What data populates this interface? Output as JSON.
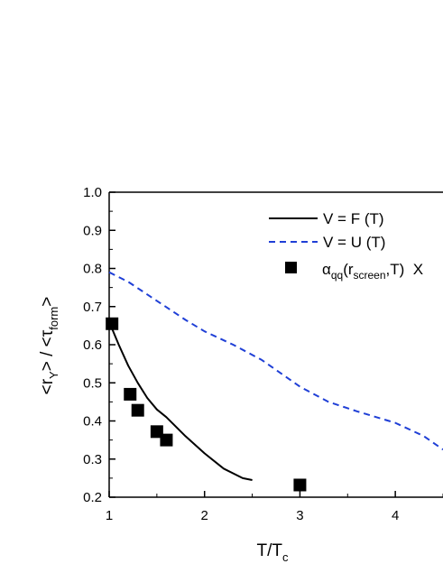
{
  "chart_data": {
    "type": "line",
    "title": "",
    "xlabel": {
      "main": "T/T",
      "sub": "c"
    },
    "ylabel": {
      "part1": "<r",
      "sub1": "Y",
      "part2": "> / <τ",
      "sub2": "form",
      "part3": ">"
    },
    "xlim": [
      1,
      4.5
    ],
    "ylim": [
      0.2,
      1.0
    ],
    "x_ticks": [
      1,
      2,
      3,
      4
    ],
    "x_tick_labels": [
      "1",
      "2",
      "3",
      "4"
    ],
    "y_ticks": [
      0.2,
      0.3,
      0.4,
      0.5,
      0.6,
      0.7,
      0.8,
      0.9,
      1.0
    ],
    "y_tick_labels": [
      "0.2",
      "0.3",
      "0.4",
      "0.5",
      "0.6",
      "0.7",
      "0.8",
      "0.9",
      "1.0"
    ],
    "grid": false,
    "legend_position": "top-right",
    "series": [
      {
        "name": "V = F (T)",
        "style": "solid",
        "color": "#000000",
        "x": [
          1.0,
          1.1,
          1.2,
          1.3,
          1.4,
          1.5,
          1.6,
          1.8,
          2.0,
          2.2,
          2.4,
          2.5
        ],
        "y": [
          0.66,
          0.6,
          0.545,
          0.5,
          0.46,
          0.43,
          0.41,
          0.36,
          0.315,
          0.275,
          0.25,
          0.245
        ]
      },
      {
        "name": "V = U (T)",
        "style": "dashed",
        "color": "#1f3fd6",
        "x": [
          1.0,
          1.2,
          1.5,
          1.8,
          2.0,
          2.3,
          2.6,
          3.0,
          3.3,
          3.6,
          4.0,
          4.3,
          4.5
        ],
        "y": [
          0.79,
          0.765,
          0.715,
          0.665,
          0.635,
          0.6,
          0.56,
          0.49,
          0.45,
          0.425,
          0.395,
          0.36,
          0.325
        ]
      },
      {
        "name": "α",
        "name_sub1": "qq",
        "name_part2": "(r",
        "name_sub2": "screen",
        "name_part3": ",T)  X",
        "style": "markers",
        "marker": "square",
        "color": "#000000",
        "x": [
          1.03,
          1.22,
          1.3,
          1.5,
          1.6,
          3.0
        ],
        "y": [
          0.655,
          0.47,
          0.428,
          0.372,
          0.35,
          0.232
        ]
      }
    ]
  }
}
